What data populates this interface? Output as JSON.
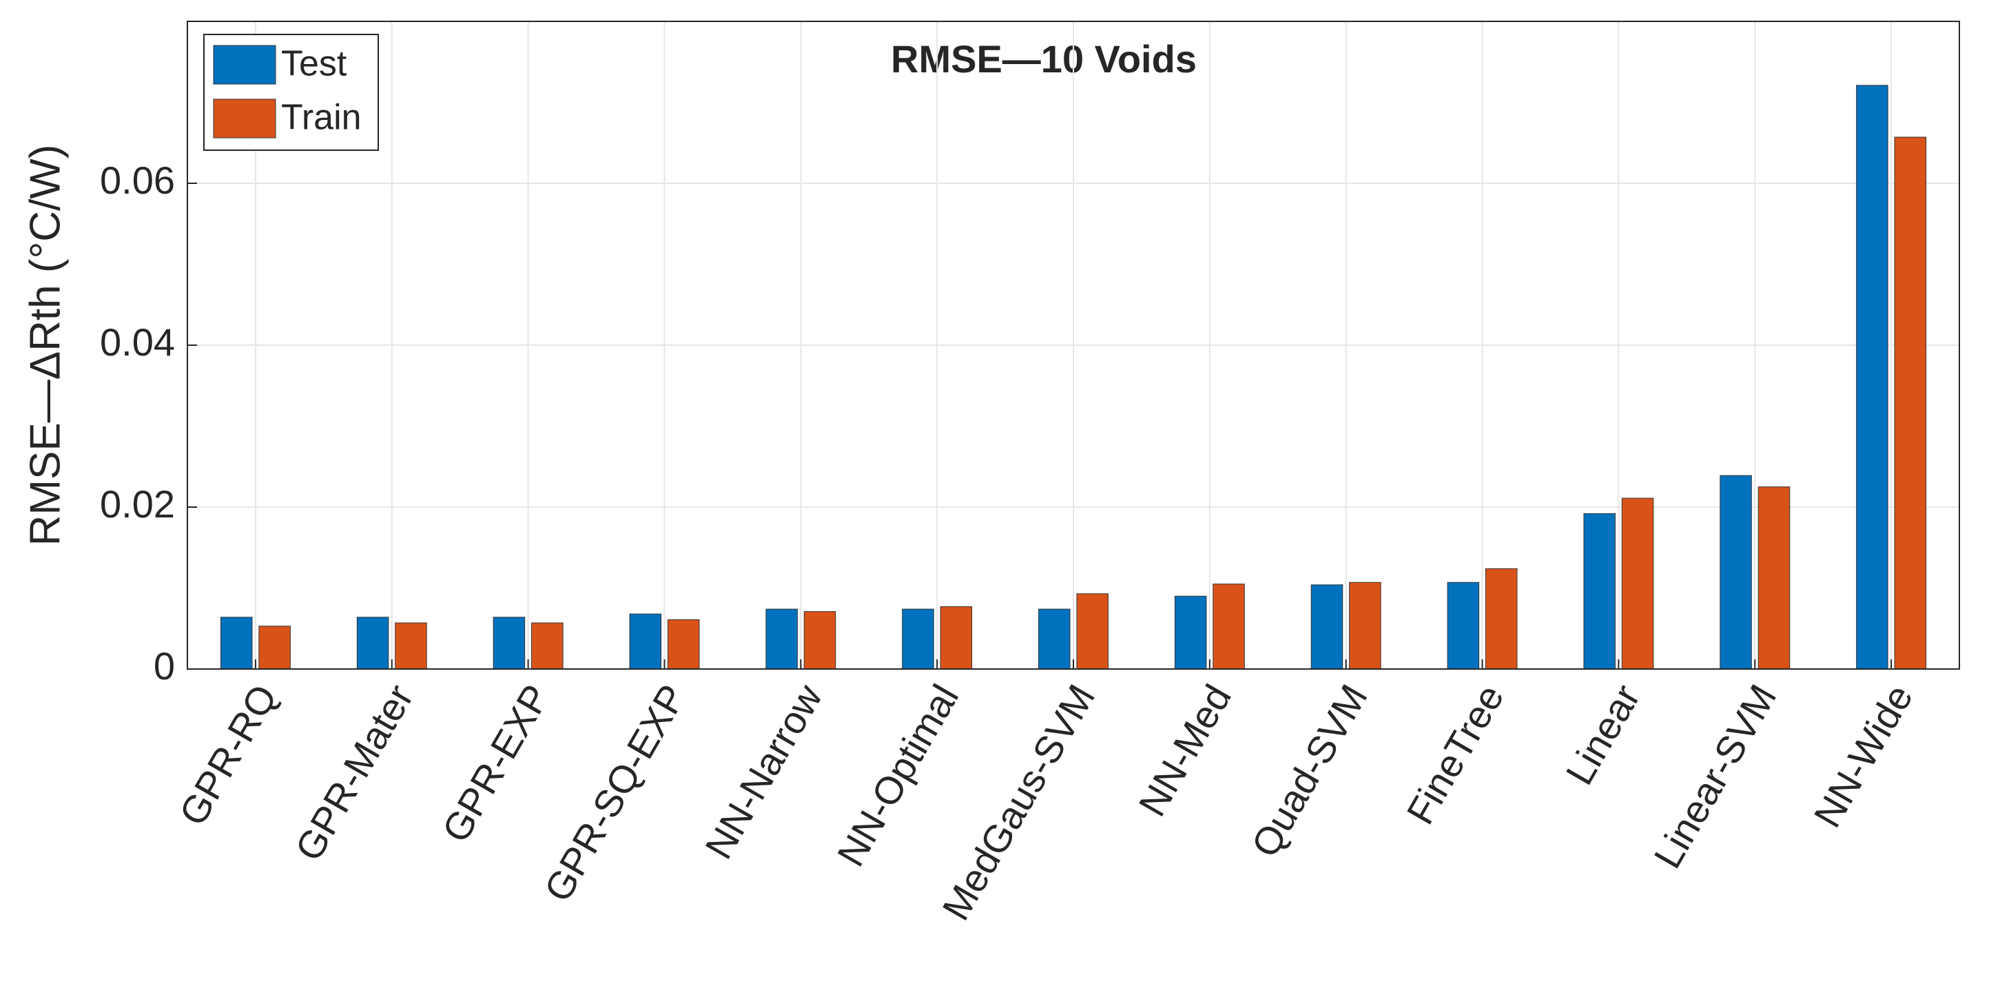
{
  "chart_data": {
    "type": "bar",
    "title": "RMSE—10 Voids",
    "ylabel": "RMSE—ΔRth (°C/W)",
    "categories": [
      "GPR-RQ",
      "GPR-Mater",
      "GPR-EXP",
      "GPR-SQ-EXP",
      "NN-Narrow",
      "NN-Optimal",
      "MedGaus-SVM",
      "NN-Med",
      "Quad-SVM",
      "FineTree",
      "Linear",
      "Linear-SVM",
      "NN-Wide"
    ],
    "series": [
      {
        "name": "Test",
        "color": "#0072bd",
        "values": [
          0.0064,
          0.0064,
          0.0064,
          0.0068,
          0.0074,
          0.0074,
          0.0074,
          0.009,
          0.0104,
          0.0107,
          0.0192,
          0.0239,
          0.0721
        ]
      },
      {
        "name": "Train",
        "color": "#d95319",
        "values": [
          0.0053,
          0.0057,
          0.0057,
          0.0061,
          0.0071,
          0.0077,
          0.0093,
          0.0105,
          0.0107,
          0.0124,
          0.0211,
          0.0225,
          0.0657
        ]
      }
    ],
    "ylim": [
      0,
      0.08
    ],
    "yticks": [
      0,
      0.02,
      0.04,
      0.06
    ],
    "grid": true,
    "legend": "upper left"
  }
}
